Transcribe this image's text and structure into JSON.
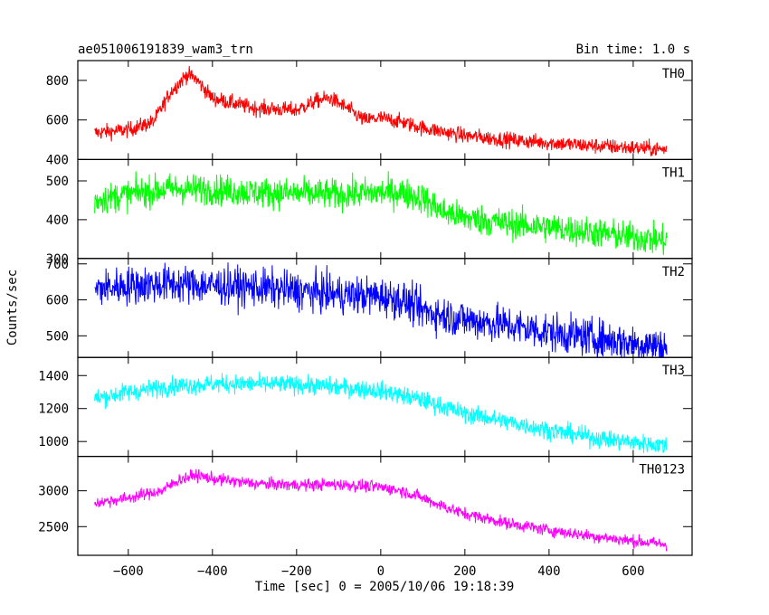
{
  "chart_data": {
    "type": "line",
    "title": "ae051006191839_wam3_trn",
    "subtitle": "Bin time: 1.0 s",
    "xlabel": "Time [sec] 0 = 2005/10/06 19:18:39",
    "ylabel": "Counts/sec",
    "xlim": [
      -720,
      740
    ],
    "x_ticks": [
      -600,
      -400,
      -200,
      0,
      200,
      400,
      600
    ],
    "x_tick_labels": [
      "−600",
      "−400",
      "−200",
      "0",
      "200",
      "400",
      "600"
    ],
    "x_range": [
      -680,
      680
    ],
    "grid": false,
    "series": [
      {
        "name": "TH0",
        "color": "#ff0000",
        "ylim": [
          400,
          900
        ],
        "y_ticks": [
          400,
          600,
          800
        ],
        "y_tick_labels": [
          "400",
          "600",
          "800"
        ],
        "noise": 28,
        "profile": [
          [
            -680,
            535
          ],
          [
            -600,
            550
          ],
          [
            -540,
            590
          ],
          [
            -500,
            740
          ],
          [
            -460,
            830
          ],
          [
            -440,
            810
          ],
          [
            -400,
            710
          ],
          [
            -300,
            660
          ],
          [
            -200,
            650
          ],
          [
            -150,
            700
          ],
          [
            -120,
            710
          ],
          [
            -80,
            660
          ],
          [
            -40,
            600
          ],
          [
            0,
            610
          ],
          [
            50,
            590
          ],
          [
            100,
            560
          ],
          [
            200,
            520
          ],
          [
            300,
            500
          ],
          [
            400,
            485
          ],
          [
            500,
            470
          ],
          [
            600,
            460
          ],
          [
            680,
            450
          ]
        ]
      },
      {
        "name": "TH1",
        "color": "#00ff00",
        "ylim": [
          300,
          555
        ],
        "y_ticks": [
          300,
          400,
          500
        ],
        "y_tick_labels": [
          "300",
          "400",
          "500"
        ],
        "noise": 28,
        "profile": [
          [
            -680,
            450
          ],
          [
            -600,
            465
          ],
          [
            -500,
            480
          ],
          [
            -400,
            478
          ],
          [
            -300,
            470
          ],
          [
            -200,
            468
          ],
          [
            -100,
            465
          ],
          [
            0,
            470
          ],
          [
            50,
            470
          ],
          [
            100,
            455
          ],
          [
            150,
            420
          ],
          [
            200,
            405
          ],
          [
            300,
            390
          ],
          [
            400,
            380
          ],
          [
            500,
            368
          ],
          [
            600,
            355
          ],
          [
            680,
            345
          ]
        ]
      },
      {
        "name": "TH2",
        "color": "#0000ff",
        "ylim": [
          440,
          715
        ],
        "y_ticks": [
          500,
          600,
          700
        ],
        "y_tick_labels": [
          "500",
          "600",
          "700"
        ],
        "noise": 38,
        "profile": [
          [
            -680,
            630
          ],
          [
            -600,
            640
          ],
          [
            -500,
            645
          ],
          [
            -400,
            640
          ],
          [
            -300,
            635
          ],
          [
            -200,
            625
          ],
          [
            -100,
            615
          ],
          [
            0,
            610
          ],
          [
            50,
            600
          ],
          [
            100,
            570
          ],
          [
            200,
            545
          ],
          [
            300,
            530
          ],
          [
            400,
            510
          ],
          [
            500,
            495
          ],
          [
            600,
            480
          ],
          [
            680,
            470
          ]
        ]
      },
      {
        "name": "TH3",
        "color": "#00ffff",
        "ylim": [
          910,
          1510
        ],
        "y_ticks": [
          1000,
          1200,
          1400
        ],
        "y_tick_labels": [
          "1000",
          "1200",
          "1400"
        ],
        "noise": 40,
        "profile": [
          [
            -680,
            1260
          ],
          [
            -600,
            1300
          ],
          [
            -500,
            1335
          ],
          [
            -400,
            1350
          ],
          [
            -300,
            1350
          ],
          [
            -200,
            1345
          ],
          [
            -100,
            1330
          ],
          [
            0,
            1310
          ],
          [
            100,
            1250
          ],
          [
            200,
            1170
          ],
          [
            300,
            1120
          ],
          [
            400,
            1070
          ],
          [
            500,
            1025
          ],
          [
            600,
            995
          ],
          [
            680,
            975
          ]
        ]
      },
      {
        "name": "TH0123",
        "color": "#ff00ff",
        "ylim": [
          2100,
          3480
        ],
        "y_ticks": [
          2500,
          3000
        ],
        "y_tick_labels": [
          "2500",
          "3000"
        ],
        "noise": 60,
        "profile": [
          [
            -680,
            2830
          ],
          [
            -600,
            2900
          ],
          [
            -520,
            3000
          ],
          [
            -480,
            3150
          ],
          [
            -440,
            3220
          ],
          [
            -400,
            3170
          ],
          [
            -300,
            3100
          ],
          [
            -200,
            3080
          ],
          [
            -100,
            3090
          ],
          [
            0,
            3050
          ],
          [
            50,
            3000
          ],
          [
            100,
            2900
          ],
          [
            150,
            2780
          ],
          [
            200,
            2680
          ],
          [
            300,
            2550
          ],
          [
            400,
            2450
          ],
          [
            500,
            2370
          ],
          [
            600,
            2300
          ],
          [
            680,
            2250
          ]
        ]
      }
    ]
  }
}
